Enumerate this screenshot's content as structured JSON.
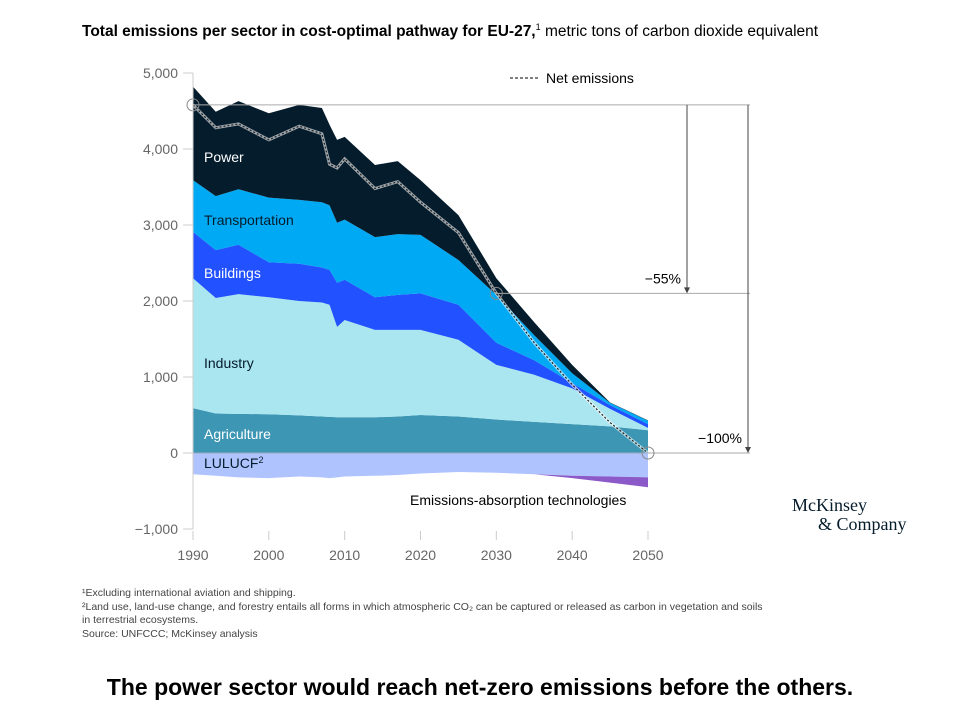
{
  "title": {
    "bold": "Total emissions per sector in cost-optimal pathway for EU-27,",
    "sup": "1",
    "rest": " metric tons of carbon dioxide equivalent"
  },
  "chart_data": {
    "type": "area",
    "stacked": true,
    "x": [
      1990,
      1993,
      1996,
      2000,
      2004,
      2007,
      2008,
      2009,
      2010,
      2014,
      2017,
      2020,
      2025,
      2030,
      2035,
      2040,
      2045,
      2050
    ],
    "series": [
      {
        "name": "Agriculture",
        "color": "#3c96b4",
        "values": [
          590,
          520,
          515,
          510,
          495,
          480,
          475,
          470,
          470,
          470,
          480,
          500,
          480,
          440,
          410,
          380,
          350,
          300
        ]
      },
      {
        "name": "Industry",
        "color": "#aae6f0",
        "values": [
          1710,
          1520,
          1575,
          1540,
          1505,
          1500,
          1475,
          1190,
          1280,
          1150,
          1140,
          1120,
          1010,
          720,
          620,
          470,
          230,
          30
        ]
      },
      {
        "name": "Buildings",
        "color": "#2251ff",
        "values": [
          610,
          630,
          650,
          460,
          490,
          460,
          460,
          580,
          530,
          430,
          460,
          480,
          460,
          290,
          190,
          70,
          50,
          50
        ]
      },
      {
        "name": "Transportation",
        "color": "#00a9f4",
        "values": [
          680,
          710,
          730,
          850,
          840,
          860,
          850,
          790,
          790,
          790,
          800,
          770,
          590,
          630,
          330,
          130,
          30,
          45
        ]
      },
      {
        "name": "Power",
        "color": "#051c2c",
        "values": [
          1230,
          1110,
          1160,
          1110,
          1250,
          1240,
          1060,
          1090,
          1090,
          950,
          960,
          720,
          590,
          220,
          170,
          110,
          5,
          5
        ]
      }
    ],
    "negative_series": [
      {
        "name": "LULUCF",
        "sup": "2",
        "color": "#afc3ff",
        "values": [
          -280,
          -300,
          -320,
          -330,
          -310,
          -320,
          -330,
          -320,
          -310,
          -300,
          -290,
          -270,
          -250,
          -260,
          -280,
          -300,
          -310,
          -320
        ]
      },
      {
        "name": "Emissions-absorption technologies",
        "color": "#8c5ac8",
        "values": [
          0,
          0,
          0,
          0,
          0,
          0,
          0,
          0,
          0,
          0,
          0,
          0,
          0,
          0,
          0,
          -30,
          -80,
          -130
        ]
      }
    ],
    "net_emissions": {
      "name": "Net emissions",
      "values": [
        4580,
        4280,
        4330,
        4120,
        4300,
        4200,
        3800,
        3750,
        3870,
        3480,
        3570,
        3300,
        2900,
        2100,
        1450,
        900,
        400,
        0
      ]
    },
    "annotations": [
      {
        "label": "−55%",
        "from": 4580,
        "to": 2100
      },
      {
        "label": "−100%",
        "from": 4580,
        "to": 0
      }
    ],
    "ylim": [
      -1000,
      5000
    ],
    "yticks": [
      "−1,000",
      "0",
      "1,000",
      "2,000",
      "3,000",
      "4,000",
      "5,000"
    ],
    "ytick_values": [
      -1000,
      0,
      1000,
      2000,
      3000,
      4000,
      5000
    ],
    "xticks": [
      1990,
      2000,
      2010,
      2020,
      2030,
      2040,
      2050
    ],
    "xlim": [
      1990,
      2050
    ],
    "grid": false,
    "legend": "top-right"
  },
  "footnotes": [
    "¹Excluding international aviation and shipping.",
    "²Land use, land-use change, and forestry entails all forms in which atmospheric CO₂ can be captured or released as carbon in vegetation and soils",
    " in terrestrial ecosystems.",
    " Source: UNFCCC; McKinsey analysis"
  ],
  "logo": {
    "line1": "McKinsey",
    "line2": "& Company"
  },
  "caption": "The power sector would reach net-zero emissions before the others."
}
